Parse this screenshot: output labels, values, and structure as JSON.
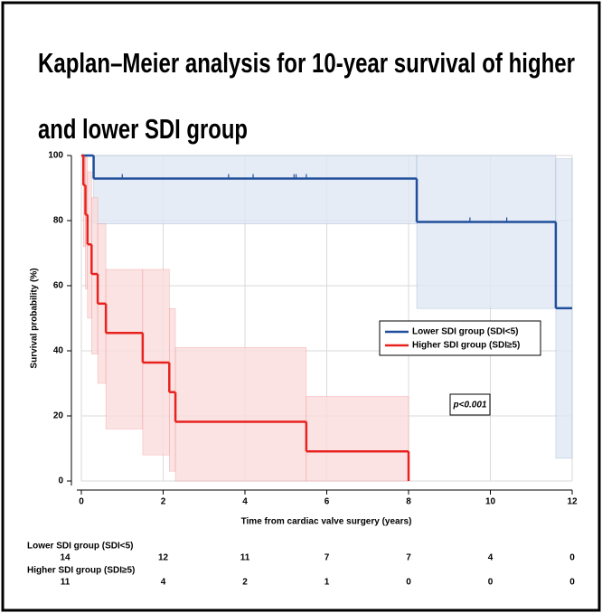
{
  "chart_data": {
    "type": "kaplan-meier",
    "title_lines": [
      "Kaplan–Meier analysis for 10-year survival of higher",
      "and lower SDI group"
    ],
    "x_label": "Time from cardiac valve surgery (years)",
    "y_label": "Survival probability (%)",
    "xlim": [
      0,
      12
    ],
    "xticks": [
      0,
      2,
      4,
      6,
      8,
      10,
      12
    ],
    "ylim": [
      0,
      100
    ],
    "yticks": [
      0,
      20,
      40,
      60,
      80,
      100
    ],
    "grid": true,
    "series": [
      {
        "name": "Lower SDI group (SDI<5)",
        "color": "#1f4e9c",
        "band_color": "#dfe7f3",
        "x": [
          0,
          0.3,
          8.2,
          11.6,
          12
        ],
        "values": [
          100,
          92.9,
          79.6,
          53.1,
          53.1
        ],
        "ci_lower": [
          100,
          79,
          53,
          7,
          7
        ],
        "ci_upper": [
          100,
          100,
          100,
          99,
          99
        ],
        "censored": [
          1.0,
          3.6,
          4.2,
          5.2,
          5.25,
          5.5,
          9.5,
          10.4
        ]
      },
      {
        "name": "Higher SDI group (SDI≥5)",
        "color": "#e8231f",
        "band_color": "#fadcdc",
        "x": [
          0,
          0.05,
          0.1,
          0.15,
          0.25,
          0.4,
          0.6,
          1.5,
          2.15,
          2.3,
          5.5,
          8.0
        ],
        "values": [
          100,
          90.9,
          81.8,
          72.7,
          63.6,
          54.5,
          45.5,
          36.4,
          27.3,
          18.2,
          9.1,
          0
        ],
        "ci_lower": [
          100,
          72,
          59,
          50,
          39,
          30,
          16,
          8,
          3,
          0,
          0,
          0
        ],
        "ci_upper": [
          100,
          100,
          100,
          95,
          87,
          79,
          65,
          65,
          53,
          41,
          26,
          0
        ],
        "censored": []
      }
    ],
    "annotation": "p<0.001",
    "at_risk": [
      {
        "name": "Lower SDI group (SDI<5)",
        "values": [
          14,
          12,
          11,
          7,
          7,
          4,
          0
        ]
      },
      {
        "name": "Higher SDI group (SDI≥5)",
        "values": [
          11,
          4,
          2,
          1,
          0,
          0,
          0
        ]
      }
    ]
  }
}
